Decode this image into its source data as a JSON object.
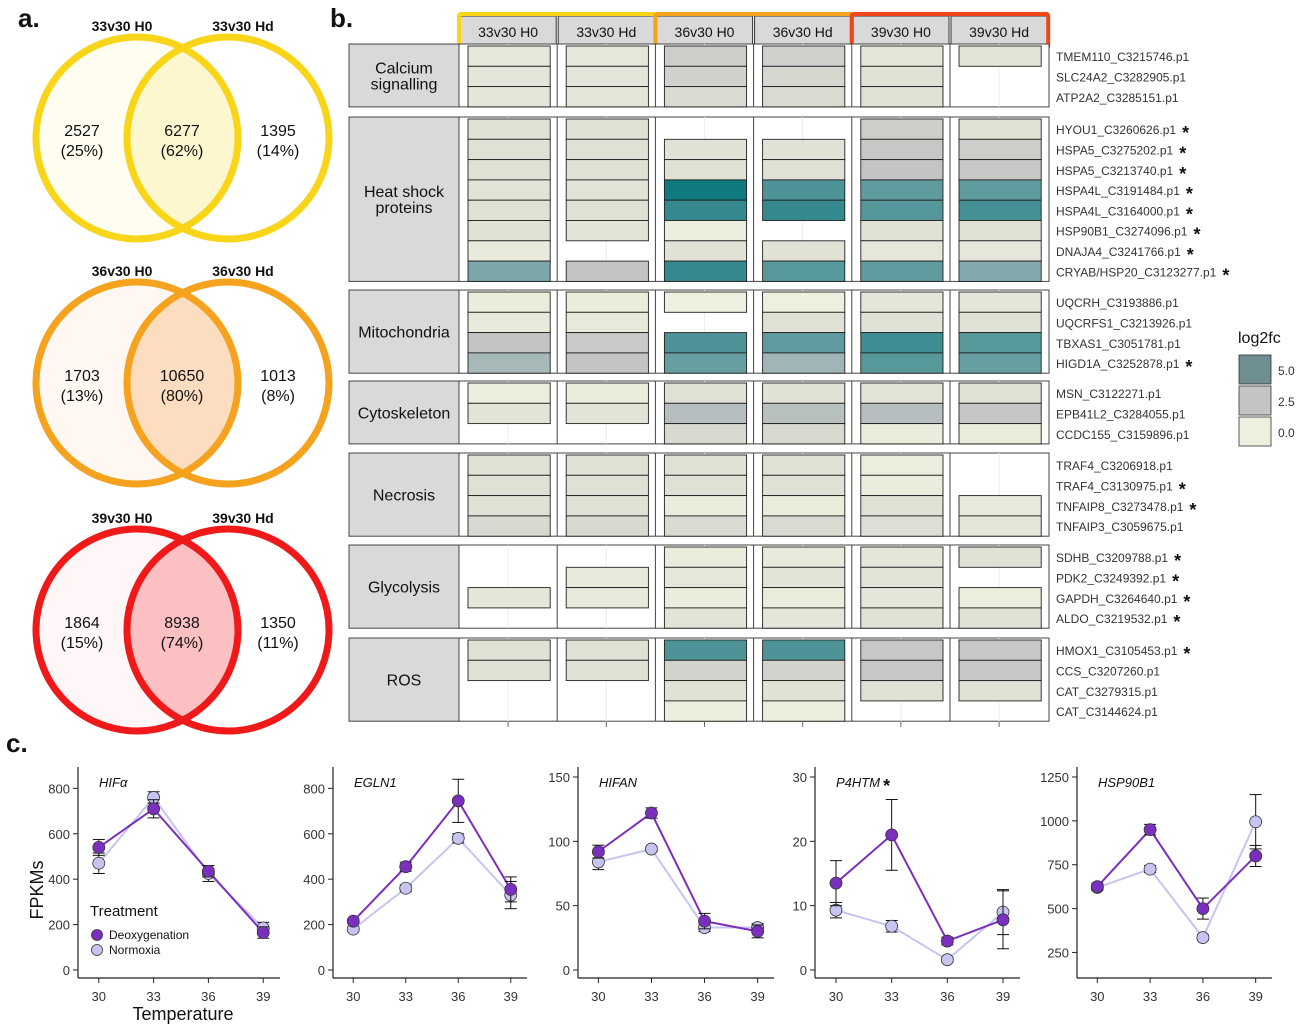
{
  "panels": {
    "a": "a.",
    "b": "b.",
    "c": "c."
  },
  "venn": [
    {
      "left_title": "33v30 H0",
      "right_title": "33v30 Hd",
      "left_count": "2527",
      "left_pct": "(25%)",
      "mid_count": "6277",
      "mid_pct": "(62%)",
      "right_count": "1395",
      "right_pct": "(14%)",
      "stroke": "#F9D51A",
      "fill_outer": "#FFFDF0",
      "fill_mid": "#FDF7D0"
    },
    {
      "left_title": "36v30 H0",
      "right_title": "36v30 Hd",
      "left_count": "1703",
      "left_pct": "(13%)",
      "mid_count": "10650",
      "mid_pct": "(80%)",
      "right_count": "1013",
      "right_pct": "(8%)",
      "stroke": "#F5A21E",
      "fill_outer": "#FFF8F2",
      "fill_mid": "#FDDDBF"
    },
    {
      "left_title": "39v30 H0",
      "right_title": "39v30 Hd",
      "left_count": "1864",
      "left_pct": "(15%)",
      "mid_count": "8938",
      "mid_pct": "(74%)",
      "right_count": "1350",
      "right_pct": "(11%)",
      "stroke": "#F01919",
      "fill_outer": "#FFF7F7",
      "fill_mid": "#FCC0C2"
    }
  ],
  "heatmap": {
    "conditions": [
      "33v30 H0",
      "33v30 Hd",
      "36v30 H0",
      "36v30 Hd",
      "39v30 H0",
      "39v30 Hd"
    ],
    "condition_group_colors": [
      "#F9D51A",
      "#F5A21E",
      "#F0471A"
    ],
    "legend": {
      "title": "log2fc",
      "ticks": [
        "5.0",
        "2.5",
        "0.0"
      ],
      "colors": [
        "#6E8E8F",
        "#C4C4C4",
        "#EFEFDF"
      ]
    },
    "categories": [
      {
        "name": "Calcium signalling",
        "genes": [
          {
            "id": "TMEM110_C3215746.p1",
            "star": false,
            "vals": [
              0.5,
              0.5,
              2.0,
              1.8,
              0.6,
              0.7
            ]
          },
          {
            "id": "SLC24A2_C3282905.p1",
            "star": false,
            "vals": [
              0.6,
              0.6,
              1.8,
              1.4,
              0.8,
              null
            ]
          },
          {
            "id": "ATP2A2_C3285151.p1",
            "star": false,
            "vals": [
              0.6,
              0.6,
              1.2,
              1.2,
              0.9,
              null
            ]
          }
        ]
      },
      {
        "name": "Heat shock proteins",
        "genes": [
          {
            "id": "HYOU1_C3260626.p1",
            "star": true,
            "vals": [
              0.9,
              0.9,
              null,
              null,
              2.0,
              0.8
            ]
          },
          {
            "id": "HSPA5_C3275202.p1",
            "star": true,
            "vals": [
              0.9,
              0.9,
              0.8,
              0.8,
              2.3,
              2.0
            ]
          },
          {
            "id": "HSPA5_C3213740.p1",
            "star": true,
            "vals": [
              0.9,
              0.9,
              0.9,
              0.9,
              2.5,
              2.3
            ]
          },
          {
            "id": "HSPA4L_C3191484.p1",
            "star": true,
            "vals": [
              0.7,
              0.7,
              7.5,
              5.8,
              5.3,
              5.3
            ]
          },
          {
            "id": "HSPA4L_C3164000.p1",
            "star": true,
            "vals": [
              0.9,
              0.9,
              6.5,
              6.5,
              5.6,
              6.0
            ]
          },
          {
            "id": "HSP90B1_C3274096.p1",
            "star": true,
            "vals": [
              0.8,
              0.7,
              0.1,
              null,
              0.8,
              0.9
            ]
          },
          {
            "id": "DNAJA4_C3241766.p1",
            "star": true,
            "vals": [
              0.3,
              null,
              0.8,
              0.8,
              0.5,
              0.5
            ]
          },
          {
            "id": "CRYAB/HSP20_C3123277.p1",
            "star": true,
            "vals": [
              4.5,
              2.5,
              6.5,
              5.5,
              5.3,
              4.3
            ]
          }
        ]
      },
      {
        "name": "Mitochondria",
        "genes": [
          {
            "id": "UQCRH_C3193886.p1",
            "star": false,
            "vals": [
              0.2,
              0.2,
              0.0,
              0.0,
              0.6,
              0.6
            ]
          },
          {
            "id": "UQCRFS1_C3213926.p1",
            "star": false,
            "vals": [
              0.4,
              0.4,
              null,
              0.9,
              0.8,
              0.9
            ]
          },
          {
            "id": "TBXAS1_C3051781.p1",
            "star": false,
            "vals": [
              2.5,
              2.2,
              5.8,
              5.3,
              6.2,
              5.5
            ]
          },
          {
            "id": "HIGD1A_C3252878.p1",
            "star": true,
            "vals": [
              3.3,
              2.5,
              5.1,
              3.5,
              5.5,
              5.1
            ]
          }
        ]
      },
      {
        "name": "Cytoskeleton",
        "genes": [
          {
            "id": "MSN_C3122271.p1",
            "star": false,
            "vals": [
              0.1,
              0.2,
              0.9,
              0.8,
              0.7,
              0.8
            ]
          },
          {
            "id": "EPB41L2_C3284055.p1",
            "star": false,
            "vals": [
              0.7,
              0.7,
              2.9,
              2.8,
              2.9,
              2.4
            ]
          },
          {
            "id": "CCDC155_C3159896.p1",
            "star": false,
            "vals": [
              null,
              null,
              1.3,
              1.3,
              0.2,
              0.2
            ]
          }
        ]
      },
      {
        "name": "Necrosis",
        "genes": [
          {
            "id": "TRAF4_C3206918.p1",
            "star": false,
            "vals": [
              0.9,
              0.9,
              0.9,
              0.9,
              0.1,
              null
            ]
          },
          {
            "id": "TRAF4_C3130975.p1",
            "star": true,
            "vals": [
              0.9,
              0.9,
              0.9,
              0.9,
              0.2,
              null
            ]
          },
          {
            "id": "TNFAIP8_C3273478.p1",
            "star": true,
            "vals": [
              0.8,
              0.8,
              0.2,
              0.2,
              0.9,
              0.3
            ]
          },
          {
            "id": "TNFAIP3_C3059675.p1",
            "star": false,
            "vals": [
              1.3,
              1.3,
              1.2,
              1.2,
              1.0,
              0.6
            ]
          }
        ]
      },
      {
        "name": "Glycolysis",
        "genes": [
          {
            "id": "SDHB_C3209788.p1",
            "star": true,
            "vals": [
              null,
              null,
              0.2,
              0.3,
              0.6,
              0.9
            ]
          },
          {
            "id": "PDK2_C3249392.p1",
            "star": true,
            "vals": [
              null,
              0.3,
              0.5,
              0.7,
              0.7,
              null
            ]
          },
          {
            "id": "GAPDH_C3264640.p1",
            "star": true,
            "vals": [
              0.6,
              0.4,
              0.2,
              0.2,
              0.6,
              0.1
            ]
          },
          {
            "id": "ALDO_C3219532.p1",
            "star": true,
            "vals": [
              null,
              null,
              0.7,
              0.6,
              0.8,
              0.8
            ]
          }
        ]
      },
      {
        "name": "ROS",
        "genes": [
          {
            "id": "HMOX1_C3105453.p1",
            "star": true,
            "vals": [
              0.9,
              0.9,
              5.8,
              5.8,
              2.3,
              2.3
            ]
          },
          {
            "id": "CCS_C3207260.p1",
            "star": false,
            "vals": [
              0.9,
              0.9,
              1.6,
              1.6,
              2.3,
              2.3
            ]
          },
          {
            "id": "CAT_C3279315.p1",
            "star": false,
            "vals": [
              null,
              null,
              0.8,
              0.8,
              0.9,
              0.9
            ]
          },
          {
            "id": "CAT_C3144624.p1",
            "star": false,
            "vals": [
              null,
              null,
              0.1,
              0.1,
              null,
              null
            ]
          }
        ]
      }
    ]
  },
  "chart_data": [
    {
      "type": "line",
      "gene": "HIFα",
      "star": false,
      "x": [
        30,
        33,
        36,
        39
      ],
      "ylim": [
        0,
        850
      ],
      "yticks": [
        0,
        200,
        400,
        600,
        800
      ],
      "ylabel": "FPKMs",
      "xlabel": "Temperature",
      "legend": {
        "title": "Treatment",
        "entries": [
          "Deoxygenation",
          "Normoxia"
        ]
      },
      "series": [
        {
          "name": "Deoxygenation",
          "color": "#7B2FBF",
          "values": [
            540,
            710,
            435,
            165
          ],
          "err": [
            35,
            40,
            25,
            25
          ]
        },
        {
          "name": "Normoxia",
          "color": "#C7C4F2",
          "values": [
            470,
            760,
            425,
            185
          ],
          "err": [
            45,
            25,
            35,
            25
          ]
        }
      ]
    },
    {
      "type": "line",
      "gene": "EGLN1",
      "star": false,
      "x": [
        30,
        33,
        36,
        39
      ],
      "ylim": [
        0,
        850
      ],
      "yticks": [
        0,
        200,
        400,
        600,
        800
      ],
      "series": [
        {
          "name": "Deoxygenation",
          "color": "#7B2FBF",
          "values": [
            215,
            455,
            745,
            355
          ],
          "err": [
            10,
            20,
            95,
            55
          ]
        },
        {
          "name": "Normoxia",
          "color": "#C7C4F2",
          "values": [
            180,
            360,
            580,
            330
          ],
          "err": [
            10,
            15,
            20,
            60
          ]
        }
      ]
    },
    {
      "type": "line",
      "gene": "HIFAN",
      "star": false,
      "x": [
        30,
        33,
        36,
        39
      ],
      "ylim": [
        0,
        150
      ],
      "yticks": [
        0,
        50,
        100,
        150
      ],
      "series": [
        {
          "name": "Deoxygenation",
          "color": "#7B2FBF",
          "values": [
            92,
            122,
            38,
            30
          ],
          "err": [
            5,
            4,
            6,
            5
          ]
        },
        {
          "name": "Normoxia",
          "color": "#C7C4F2",
          "values": [
            84,
            94,
            33,
            33
          ],
          "err": [
            6,
            2,
            3,
            3
          ]
        }
      ]
    },
    {
      "type": "line",
      "gene": "P4HTM",
      "star": true,
      "x": [
        30,
        33,
        36,
        39
      ],
      "ylim": [
        0,
        30
      ],
      "yticks": [
        0,
        10,
        20,
        30
      ],
      "series": [
        {
          "name": "Deoxygenation",
          "color": "#7B2FBF",
          "values": [
            13.5,
            21,
            4.5,
            7.8
          ],
          "err": [
            3.5,
            5.5,
            0.6,
            4.5
          ]
        },
        {
          "name": "Normoxia",
          "color": "#C7C4F2",
          "values": [
            9.3,
            6.8,
            1.6,
            9.0
          ],
          "err": [
            1.2,
            0.9,
            0.4,
            3.5
          ]
        }
      ]
    },
    {
      "type": "line",
      "gene": "HSP90B1",
      "star": false,
      "x": [
        30,
        33,
        36,
        39
      ],
      "ylim": [
        150,
        1250
      ],
      "yticks": [
        250,
        500,
        750,
        1000,
        1250
      ],
      "series": [
        {
          "name": "Deoxygenation",
          "color": "#7B2FBF",
          "values": [
            625,
            950,
            500,
            800
          ],
          "err": [
            20,
            30,
            60,
            60
          ]
        },
        {
          "name": "Normoxia",
          "color": "#C7C4F2",
          "values": [
            620,
            725,
            335,
            995
          ],
          "err": [
            15,
            20,
            15,
            155
          ]
        }
      ]
    }
  ]
}
